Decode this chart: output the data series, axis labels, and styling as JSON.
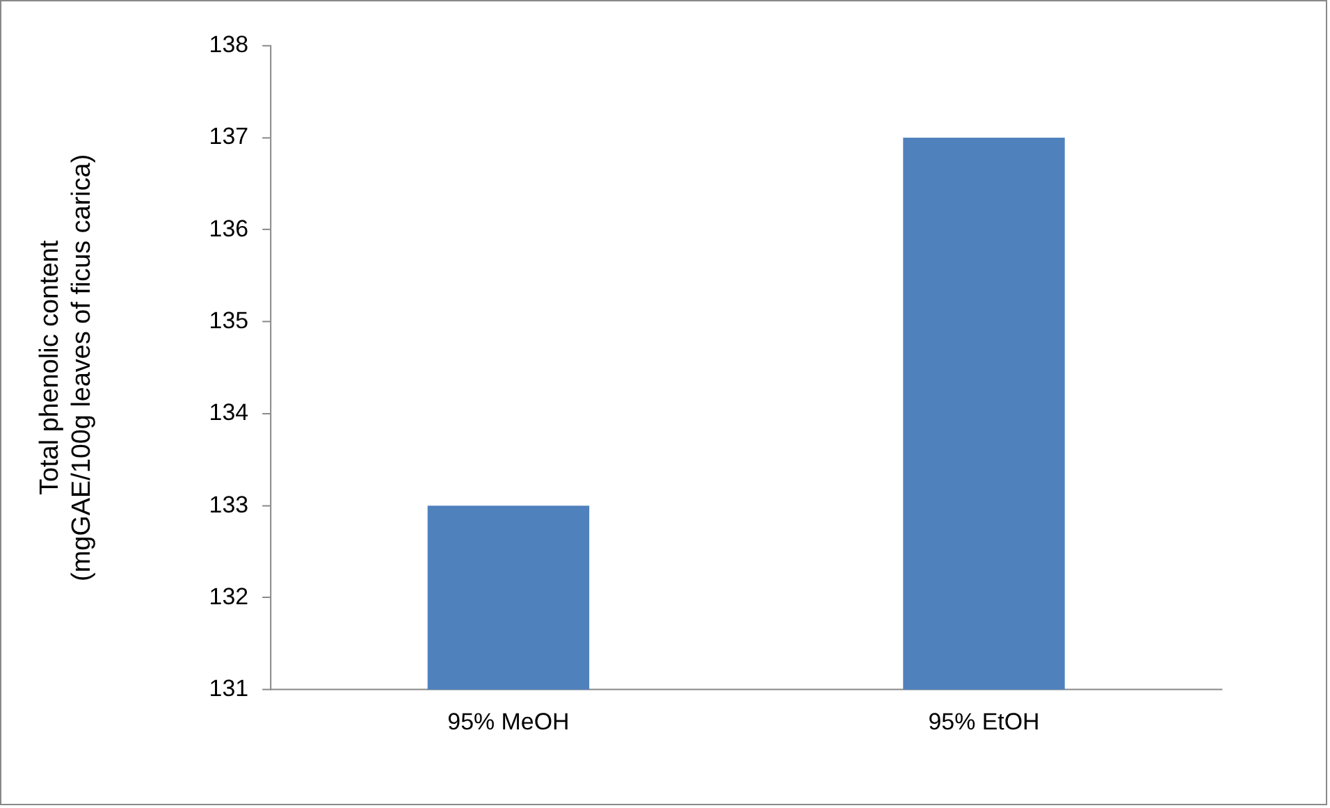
{
  "chart_data": {
    "type": "bar",
    "ylabel": "Total phenolic content\n(mgGAE/100g leaves of ficus carica)",
    "categories": [
      "95% MeOH",
      "95% EtOH"
    ],
    "values": [
      133,
      137
    ],
    "color": "#4f81bd",
    "ylim": [
      131,
      138
    ],
    "yticks": [
      131,
      132,
      133,
      134,
      135,
      136,
      137,
      138
    ],
    "grid": false,
    "legend": false
  }
}
